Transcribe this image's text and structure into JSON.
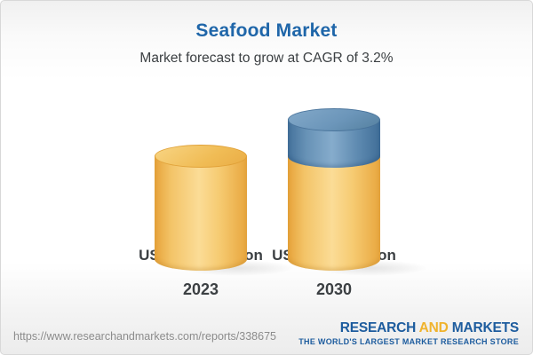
{
  "header": {
    "title": "Seafood Market",
    "subtitle": "Market forecast to grow at CAGR of 3.2%"
  },
  "chart_data": {
    "type": "bar",
    "bar_style": "3d-cylinder",
    "categories": [
      "2023",
      "2030"
    ],
    "values": [
      120.3,
      155.3
    ],
    "value_labels": [
      "USD 120.3 Billion",
      "USD 155.3 Billion"
    ],
    "unit": "USD Billion",
    "cagr_pct": 3.2,
    "legend_position": "none",
    "grid": false,
    "colors": {
      "base_segment": "#f3c468",
      "growth_segment": "#6792b6",
      "title": "#1f66a9",
      "label_text": "#3c4043"
    }
  },
  "footer": {
    "url": "https://www.researchandmarkets.com/reports/338675",
    "logo": {
      "word1": "RESEARCH",
      "word2": "AND",
      "word3": "MARKETS",
      "tagline": "THE WORLD'S LARGEST MARKET RESEARCH STORE",
      "blue": "#1d5c9e",
      "gold": "#f0b32d"
    }
  }
}
